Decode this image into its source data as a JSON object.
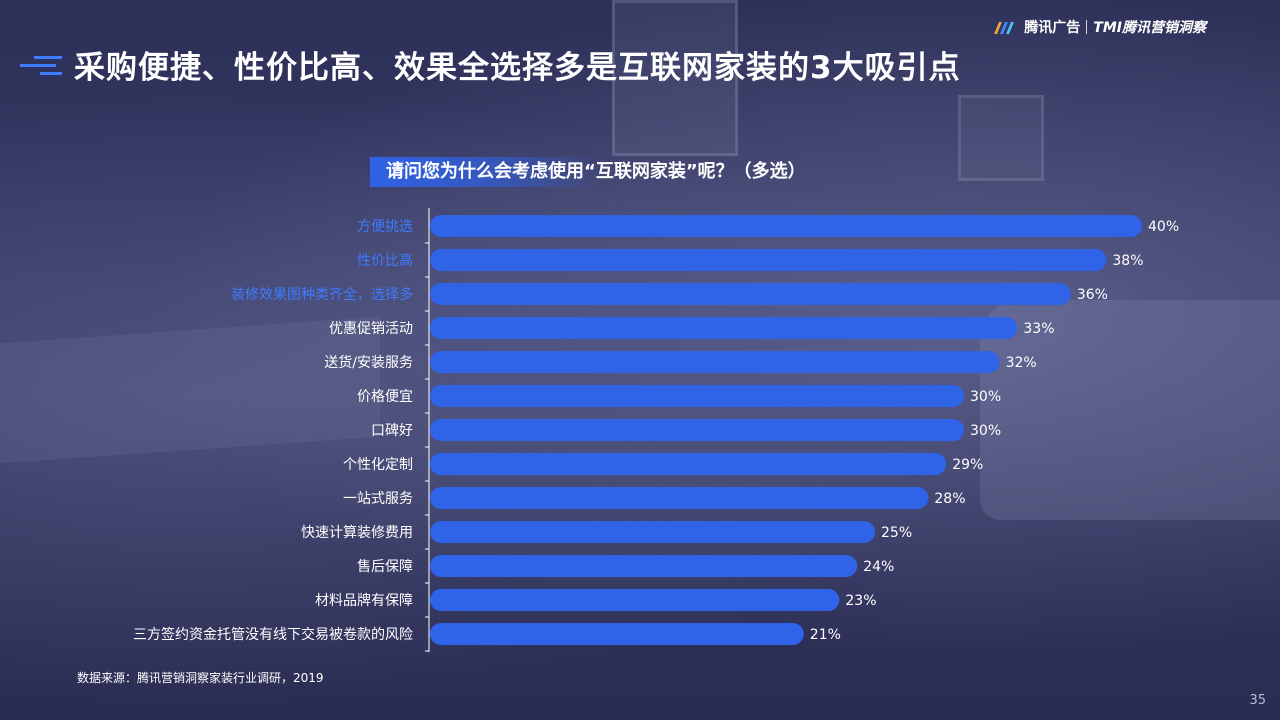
{
  "logo": {
    "text1": "腾讯广告",
    "text2": "TMI腾讯营销洞察"
  },
  "title": "采购便捷、性价比高、效果全选择多是互联网家装的3大吸引点",
  "question": "请问您为什么会考虑使用“互联网家装”呢？（多选）",
  "source": "数据来源：腾讯营销洞察家装行业调研，2019",
  "page_number": "35",
  "colors": {
    "bar": "#2f63e8",
    "highlight_label": "#3d7bff",
    "label": "#ffffff",
    "value": "#ffffff"
  },
  "chart_data": {
    "type": "bar",
    "orientation": "horizontal",
    "categories": [
      "方便挑选",
      "性价比高",
      "装修效果图种类齐全，选择多",
      "优惠促销活动",
      "送货/安装服务",
      "价格便宜",
      "口碑好",
      "个性化定制",
      "一站式服务",
      "快速计算装修费用",
      "售后保障",
      "材料品牌有保障",
      "三方签约资金托管没有线下交易被卷款的风险"
    ],
    "values": [
      40,
      38,
      36,
      33,
      32,
      30,
      30,
      29,
      28,
      25,
      24,
      23,
      21
    ],
    "value_labels": [
      "40%",
      "38%",
      "36%",
      "33%",
      "32%",
      "30%",
      "30%",
      "29%",
      "28%",
      "25%",
      "24%",
      "23%",
      "21%"
    ],
    "highlighted": [
      0,
      1,
      2
    ],
    "xlim": [
      0,
      40
    ]
  }
}
